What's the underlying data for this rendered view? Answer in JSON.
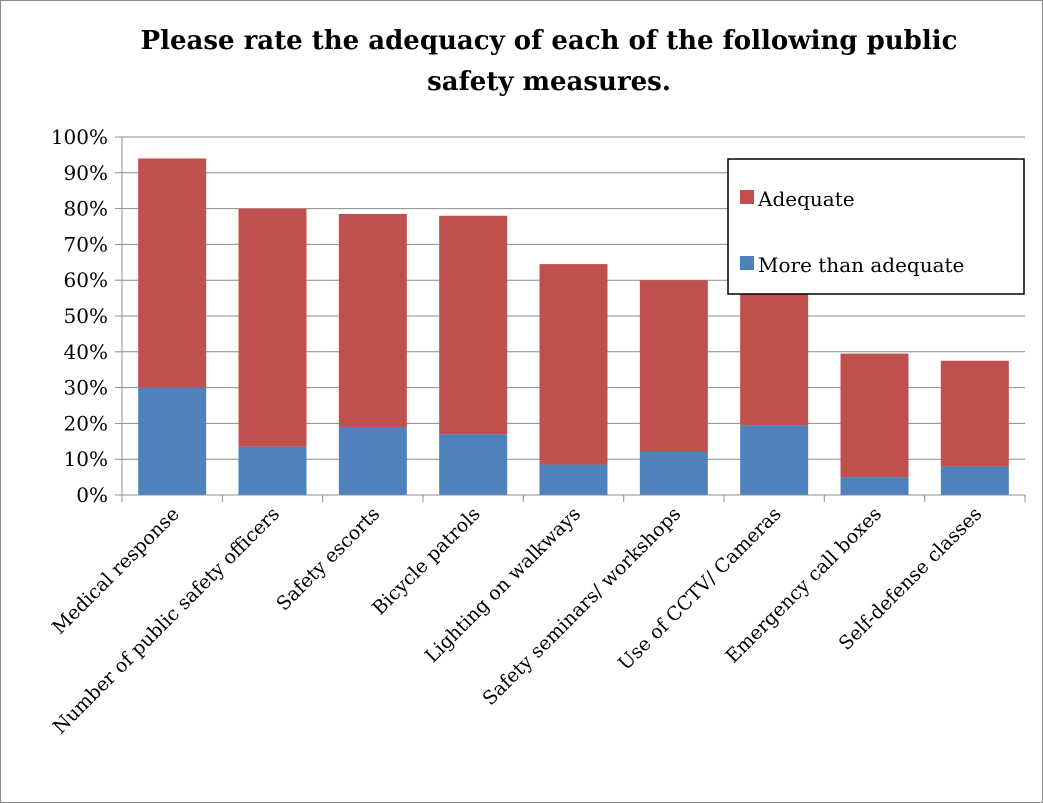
{
  "chart_data": {
    "type": "bar",
    "stacked": true,
    "title": "Please rate the adequacy of each of the following public safety measures.",
    "title_lines": [
      "Please rate the adequacy of each of the following public",
      "safety measures."
    ],
    "categories": [
      "Medical response",
      "Number of public safety officers",
      "Safety escorts",
      "Bicycle patrols",
      "Lighting on walkways",
      "Safety seminars/ workshops",
      "Use of CCTV/ Cameras",
      "Emergency call boxes",
      "Self-defense classes"
    ],
    "series": [
      {
        "name": "More than adequate",
        "color": "#4f81bd",
        "values": [
          30,
          13.5,
          19,
          17,
          8.5,
          12,
          19.5,
          5,
          8
        ]
      },
      {
        "name": "Adequate",
        "color": "#c0504d",
        "values": [
          64,
          66.5,
          59.5,
          61,
          56,
          48,
          37,
          34.5,
          29.5
        ]
      }
    ],
    "yaxis": {
      "min": 0,
      "max": 100,
      "step": 10,
      "tick_labels": [
        "0%",
        "10%",
        "20%",
        "30%",
        "40%",
        "50%",
        "60%",
        "70%",
        "80%",
        "90%",
        "100%"
      ]
    },
    "grid": true,
    "legend": {
      "position": "top-right",
      "entries": [
        {
          "label": "Adequate",
          "color": "#c0504d"
        },
        {
          "label": "More than adequate",
          "color": "#4f81bd"
        }
      ]
    }
  }
}
